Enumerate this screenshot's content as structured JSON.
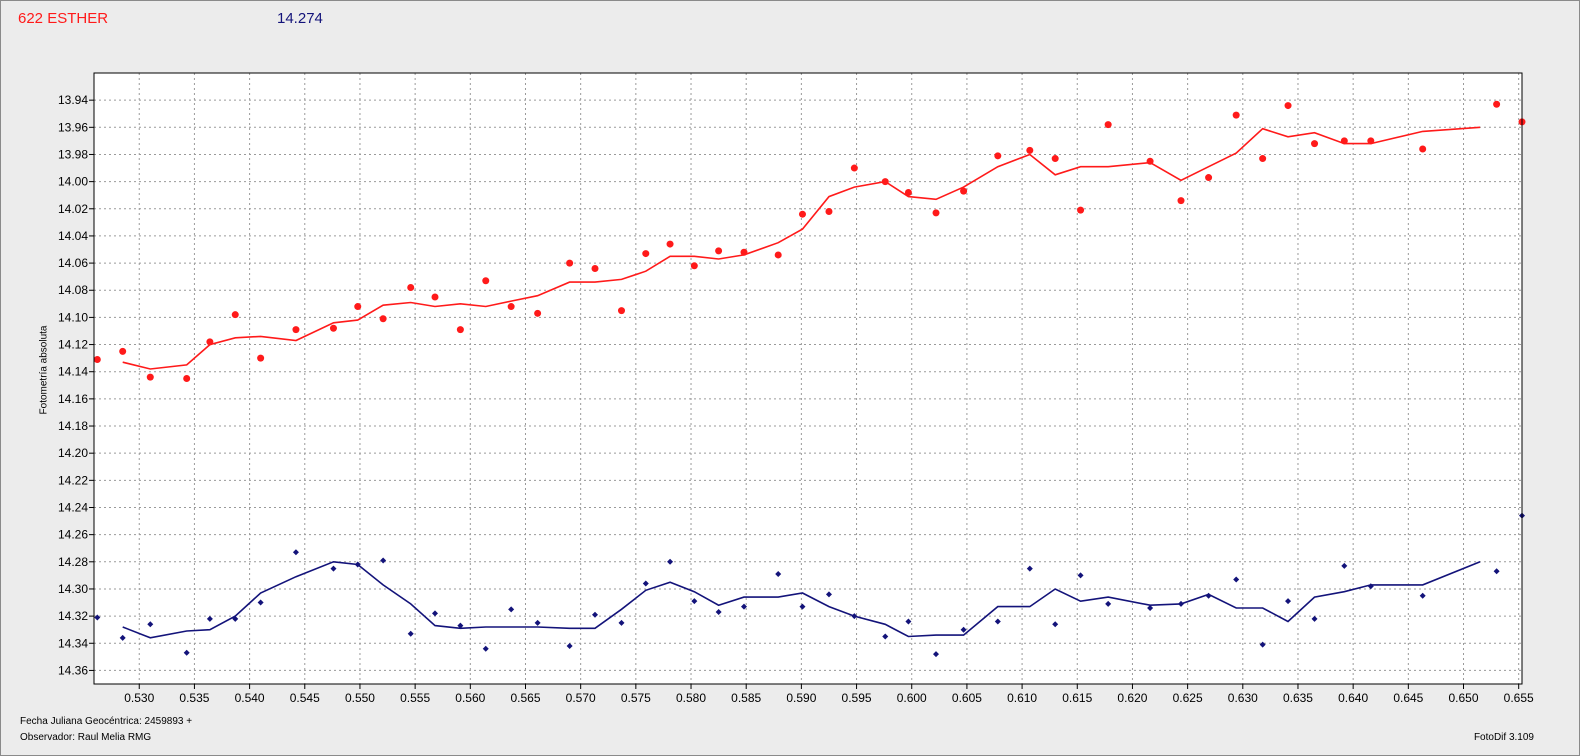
{
  "header": {
    "title": "622 ESTHER",
    "value": "14.274"
  },
  "footer": {
    "julian_date": "Fecha Juliana Geocéntrica: 2459893 +",
    "observer": "Observador: Raul Melia RMG",
    "software": "FotoDif 3.109"
  },
  "colors": {
    "series1": "#ff1a1a",
    "series2": "#13137a",
    "grid": "#9a9a9a",
    "plot_bg": "#ffffff"
  },
  "chart_data": {
    "type": "scatter",
    "ylabel": "Fotometría absoluta",
    "xlabel": "",
    "xlim": [
      0.5259,
      0.6553
    ],
    "ylim": [
      14.37,
      13.92
    ],
    "y_inverted": true,
    "grid": true,
    "x_ticks": [
      "0.530",
      "0.535",
      "0.540",
      "0.545",
      "0.550",
      "0.555",
      "0.560",
      "0.565",
      "0.570",
      "0.575",
      "0.580",
      "0.585",
      "0.590",
      "0.595",
      "0.600",
      "0.605",
      "0.610",
      "0.615",
      "0.620",
      "0.625",
      "0.630",
      "0.635",
      "0.640",
      "0.645",
      "0.650",
      "0.655"
    ],
    "y_ticks": [
      "13.94",
      "13.96",
      "13.98",
      "14.00",
      "14.02",
      "14.04",
      "14.06",
      "14.08",
      "14.10",
      "14.12",
      "14.14",
      "14.16",
      "14.18",
      "14.20",
      "14.22",
      "14.24",
      "14.26",
      "14.28",
      "14.30",
      "14.32",
      "14.34",
      "14.36"
    ],
    "series": [
      {
        "color": "#ff1a1a",
        "points": [
          [
            0.5262,
            14.131
          ],
          [
            0.5285,
            14.125
          ],
          [
            0.531,
            14.144
          ],
          [
            0.5343,
            14.145
          ],
          [
            0.5364,
            14.118
          ],
          [
            0.5387,
            14.098
          ],
          [
            0.541,
            14.13
          ],
          [
            0.5442,
            14.109
          ],
          [
            0.5476,
            14.108
          ],
          [
            0.5498,
            14.092
          ],
          [
            0.5521,
            14.101
          ],
          [
            0.5546,
            14.078
          ],
          [
            0.5568,
            14.085
          ],
          [
            0.5591,
            14.109
          ],
          [
            0.5614,
            14.073
          ],
          [
            0.5637,
            14.092
          ],
          [
            0.5661,
            14.097
          ],
          [
            0.569,
            14.06
          ],
          [
            0.5713,
            14.064
          ],
          [
            0.5737,
            14.095
          ],
          [
            0.5759,
            14.053
          ],
          [
            0.5781,
            14.046
          ],
          [
            0.5803,
            14.062
          ],
          [
            0.5825,
            14.051
          ],
          [
            0.5848,
            14.052
          ],
          [
            0.5879,
            14.054
          ],
          [
            0.5901,
            14.024
          ],
          [
            0.5925,
            14.022
          ],
          [
            0.5948,
            13.99
          ],
          [
            0.5976,
            14.0
          ],
          [
            0.5997,
            14.008
          ],
          [
            0.6022,
            14.023
          ],
          [
            0.6047,
            14.007
          ],
          [
            0.6078,
            13.981
          ],
          [
            0.6107,
            13.977
          ],
          [
            0.613,
            13.983
          ],
          [
            0.6153,
            14.021
          ],
          [
            0.6178,
            13.958
          ],
          [
            0.6216,
            13.985
          ],
          [
            0.6244,
            14.014
          ],
          [
            0.6269,
            13.997
          ],
          [
            0.6294,
            13.951
          ],
          [
            0.6318,
            13.983
          ],
          [
            0.6341,
            13.944
          ],
          [
            0.6365,
            13.972
          ],
          [
            0.6392,
            13.97
          ],
          [
            0.6416,
            13.97
          ],
          [
            0.6463,
            13.976
          ],
          [
            0.653,
            13.943
          ],
          [
            0.6553,
            13.956
          ]
        ],
        "line": [
          [
            0.5285,
            14.133
          ],
          [
            0.531,
            14.138
          ],
          [
            0.5343,
            14.135
          ],
          [
            0.5364,
            14.12
          ],
          [
            0.5387,
            14.115
          ],
          [
            0.541,
            14.114
          ],
          [
            0.5442,
            14.117
          ],
          [
            0.5476,
            14.104
          ],
          [
            0.5498,
            14.102
          ],
          [
            0.5521,
            14.091
          ],
          [
            0.5546,
            14.089
          ],
          [
            0.5568,
            14.092
          ],
          [
            0.5591,
            14.09
          ],
          [
            0.5614,
            14.092
          ],
          [
            0.5637,
            14.088
          ],
          [
            0.5661,
            14.084
          ],
          [
            0.569,
            14.074
          ],
          [
            0.5713,
            14.074
          ],
          [
            0.5737,
            14.072
          ],
          [
            0.5759,
            14.066
          ],
          [
            0.5781,
            14.055
          ],
          [
            0.5803,
            14.055
          ],
          [
            0.5825,
            14.057
          ],
          [
            0.5848,
            14.054
          ],
          [
            0.5879,
            14.045
          ],
          [
            0.5901,
            14.035
          ],
          [
            0.5925,
            14.011
          ],
          [
            0.5948,
            14.004
          ],
          [
            0.5976,
            14.0
          ],
          [
            0.5997,
            14.011
          ],
          [
            0.6022,
            14.013
          ],
          [
            0.6047,
            14.004
          ],
          [
            0.6078,
            13.989
          ],
          [
            0.6107,
            13.98
          ],
          [
            0.613,
            13.995
          ],
          [
            0.6153,
            13.989
          ],
          [
            0.6178,
            13.989
          ],
          [
            0.6216,
            13.986
          ],
          [
            0.6244,
            13.999
          ],
          [
            0.6269,
            13.989
          ],
          [
            0.6294,
            13.979
          ],
          [
            0.6318,
            13.961
          ],
          [
            0.6341,
            13.967
          ],
          [
            0.6365,
            13.964
          ],
          [
            0.6392,
            13.972
          ],
          [
            0.6416,
            13.972
          ],
          [
            0.6463,
            13.963
          ],
          [
            0.6515,
            13.96
          ]
        ]
      },
      {
        "color": "#13137a",
        "points": [
          [
            0.5262,
            14.321
          ],
          [
            0.5285,
            14.336
          ],
          [
            0.531,
            14.326
          ],
          [
            0.5343,
            14.347
          ],
          [
            0.5364,
            14.322
          ],
          [
            0.5387,
            14.322
          ],
          [
            0.541,
            14.31
          ],
          [
            0.5442,
            14.273
          ],
          [
            0.5476,
            14.285
          ],
          [
            0.5498,
            14.282
          ],
          [
            0.5521,
            14.279
          ],
          [
            0.5546,
            14.333
          ],
          [
            0.5568,
            14.318
          ],
          [
            0.5591,
            14.327
          ],
          [
            0.5614,
            14.344
          ],
          [
            0.5637,
            14.315
          ],
          [
            0.5661,
            14.325
          ],
          [
            0.569,
            14.342
          ],
          [
            0.5713,
            14.319
          ],
          [
            0.5737,
            14.325
          ],
          [
            0.5759,
            14.296
          ],
          [
            0.5781,
            14.28
          ],
          [
            0.5803,
            14.309
          ],
          [
            0.5825,
            14.317
          ],
          [
            0.5848,
            14.313
          ],
          [
            0.5879,
            14.289
          ],
          [
            0.5901,
            14.313
          ],
          [
            0.5925,
            14.304
          ],
          [
            0.5948,
            14.32
          ],
          [
            0.5976,
            14.335
          ],
          [
            0.5997,
            14.324
          ],
          [
            0.6022,
            14.348
          ],
          [
            0.6047,
            14.33
          ],
          [
            0.6078,
            14.324
          ],
          [
            0.6107,
            14.285
          ],
          [
            0.613,
            14.326
          ],
          [
            0.6153,
            14.29
          ],
          [
            0.6178,
            14.311
          ],
          [
            0.6216,
            14.314
          ],
          [
            0.6244,
            14.311
          ],
          [
            0.6269,
            14.305
          ],
          [
            0.6294,
            14.293
          ],
          [
            0.6318,
            14.341
          ],
          [
            0.6341,
            14.309
          ],
          [
            0.6365,
            14.322
          ],
          [
            0.6392,
            14.283
          ],
          [
            0.6416,
            14.298
          ],
          [
            0.6463,
            14.305
          ],
          [
            0.653,
            14.287
          ],
          [
            0.6553,
            14.246
          ]
        ],
        "line": [
          [
            0.5285,
            14.328
          ],
          [
            0.531,
            14.336
          ],
          [
            0.5343,
            14.331
          ],
          [
            0.5364,
            14.33
          ],
          [
            0.5387,
            14.32
          ],
          [
            0.541,
            14.303
          ],
          [
            0.5442,
            14.291
          ],
          [
            0.5476,
            14.28
          ],
          [
            0.5498,
            14.282
          ],
          [
            0.5521,
            14.297
          ],
          [
            0.5546,
            14.311
          ],
          [
            0.5568,
            14.327
          ],
          [
            0.5591,
            14.329
          ],
          [
            0.5614,
            14.328
          ],
          [
            0.5637,
            14.328
          ],
          [
            0.5661,
            14.328
          ],
          [
            0.569,
            14.329
          ],
          [
            0.5713,
            14.329
          ],
          [
            0.5737,
            14.315
          ],
          [
            0.5759,
            14.301
          ],
          [
            0.5781,
            14.295
          ],
          [
            0.5803,
            14.302
          ],
          [
            0.5825,
            14.312
          ],
          [
            0.5848,
            14.306
          ],
          [
            0.5879,
            14.306
          ],
          [
            0.5901,
            14.303
          ],
          [
            0.5925,
            14.313
          ],
          [
            0.5948,
            14.32
          ],
          [
            0.5976,
            14.326
          ],
          [
            0.5997,
            14.335
          ],
          [
            0.6022,
            14.334
          ],
          [
            0.6047,
            14.334
          ],
          [
            0.6078,
            14.313
          ],
          [
            0.6107,
            14.313
          ],
          [
            0.613,
            14.3
          ],
          [
            0.6153,
            14.309
          ],
          [
            0.6178,
            14.306
          ],
          [
            0.6216,
            14.312
          ],
          [
            0.6244,
            14.311
          ],
          [
            0.6269,
            14.304
          ],
          [
            0.6294,
            14.314
          ],
          [
            0.6318,
            14.314
          ],
          [
            0.6341,
            14.324
          ],
          [
            0.6365,
            14.306
          ],
          [
            0.6392,
            14.302
          ],
          [
            0.6416,
            14.297
          ],
          [
            0.6463,
            14.297
          ],
          [
            0.6515,
            14.28
          ]
        ]
      }
    ]
  }
}
